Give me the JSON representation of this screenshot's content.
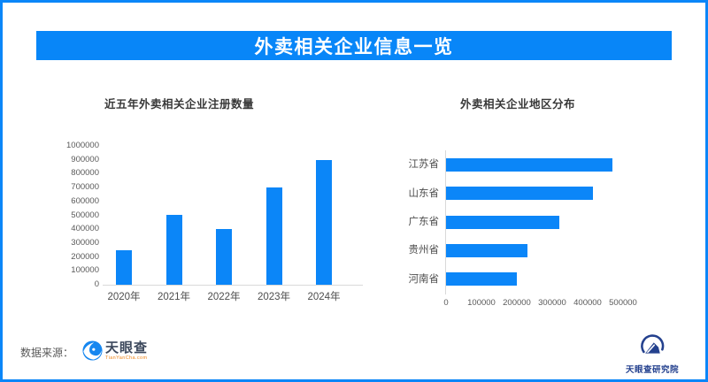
{
  "banner": {
    "title": "外卖相关企业信息一览"
  },
  "colors": {
    "accent_blue": "#0b86f8",
    "banner_bg": "#0886f8",
    "bar_blue": "#0b86f8",
    "axis_text": "#595959",
    "axis_line": "#d9d9d9",
    "chart_title_text": "#383838",
    "source_text": "#595959",
    "tyc_logotype": "#3c485c",
    "tyc_sub_orange": "#f08519",
    "brand_navy": "#24418e"
  },
  "chart_data": [
    {
      "type": "bar",
      "orientation": "vertical",
      "title": "近五年外卖相关企业注册数量",
      "categories": [
        "2020年",
        "2021年",
        "2022年",
        "2023年",
        "2024年"
      ],
      "values": [
        250000,
        500000,
        400000,
        700000,
        900000
      ],
      "xlabel": "",
      "ylabel": "",
      "ylim": [
        0,
        1000000
      ],
      "ytick_step": 100000,
      "grid": false,
      "legend": "none",
      "bar_color": "#0b86f8"
    },
    {
      "type": "bar",
      "orientation": "horizontal",
      "title": "外卖相关企业地区分布",
      "categories": [
        "江苏省",
        "山东省",
        "广东省",
        "贵州省",
        "河南省"
      ],
      "values": [
        470000,
        415000,
        320000,
        230000,
        200000
      ],
      "xlabel": "",
      "ylabel": "",
      "xlim": [
        0,
        500000
      ],
      "xtick_step": 100000,
      "grid": false,
      "legend": "none",
      "bar_color": "#0b86f8"
    }
  ],
  "footer": {
    "source_label": "数据来源：",
    "source_logo_name": "天眼查",
    "source_logo_sub": "TianYanCha.com",
    "brand_name": "天眼查研究院"
  },
  "icons": {
    "tianyancha_logo": "tianyancha-eye-swirl",
    "research_institute_logo": "tianyancha-research-emblem"
  }
}
